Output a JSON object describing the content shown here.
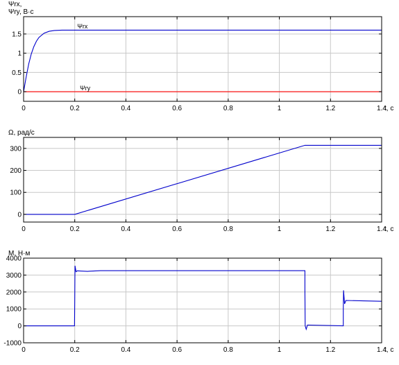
{
  "chart_data": [
    {
      "type": "line",
      "ylabel": [
        "Ψrx,",
        "Ψry, В·с"
      ],
      "xlabel": "t, с",
      "xlim": [
        0,
        1.4
      ],
      "ylim": [
        -0.25,
        1.95
      ],
      "xticks": [
        0,
        0.2,
        0.4,
        0.6,
        0.8,
        1,
        1.2,
        1.4
      ],
      "xtick_labels": [
        "0",
        "0.2",
        "0.4",
        "0.6",
        "0.8",
        "1",
        "1.2",
        "1.4"
      ],
      "yticks": [
        0,
        0.5,
        1,
        1.5
      ],
      "ytick_labels": [
        "0",
        "0.5",
        "1",
        "1.5"
      ],
      "grid": true,
      "series": [
        {
          "name": "Ψrx",
          "color": "#0000cc",
          "x": [
            0,
            0.01,
            0.02,
            0.03,
            0.04,
            0.05,
            0.06,
            0.08,
            0.1,
            0.12,
            0.15,
            0.2,
            0.5,
            1.0,
            1.4
          ],
          "y": [
            0,
            0.38,
            0.72,
            0.98,
            1.17,
            1.31,
            1.41,
            1.52,
            1.57,
            1.59,
            1.6,
            1.6,
            1.6,
            1.6,
            1.6
          ]
        },
        {
          "name": "Ψry",
          "color": "#ff0000",
          "x": [
            0,
            1.4
          ],
          "y": [
            0,
            0
          ]
        }
      ],
      "annotations": [
        {
          "text": "Ψrx",
          "x": 0.21,
          "y": 1.64
        },
        {
          "text": "Ψry",
          "x": 0.22,
          "y": 0.04
        }
      ]
    },
    {
      "type": "line",
      "ylabel": [
        "Ω, рад/с"
      ],
      "xlabel": "t, с",
      "xlim": [
        0,
        1.4
      ],
      "ylim": [
        -35,
        350
      ],
      "xticks": [
        0,
        0.2,
        0.4,
        0.6,
        0.8,
        1,
        1.2,
        1.4
      ],
      "xtick_labels": [
        "0",
        "0.2",
        "0.4",
        "0.6",
        "0.8",
        "1",
        "1.2",
        "1.4"
      ],
      "yticks": [
        0,
        100,
        200,
        300
      ],
      "ytick_labels": [
        "0",
        "100",
        "200",
        "300"
      ],
      "grid": true,
      "series": [
        {
          "color": "#0000cc",
          "x": [
            0,
            0.2,
            1.1,
            1.4
          ],
          "y": [
            0,
            0,
            314,
            314
          ]
        }
      ]
    },
    {
      "type": "line",
      "ylabel": [
        "M, Н·м"
      ],
      "xlabel": "t, с",
      "xlim": [
        0,
        1.4
      ],
      "ylim": [
        -1000,
        4000
      ],
      "xticks": [
        0,
        0.2,
        0.4,
        0.6,
        0.8,
        1,
        1.2,
        1.4
      ],
      "xtick_labels": [
        "0",
        "0.2",
        "0.4",
        "0.6",
        "0.8",
        "1",
        "1.2",
        "1.4"
      ],
      "yticks": [
        -1000,
        0,
        1000,
        2000,
        3000,
        4000
      ],
      "ytick_labels": [
        "-1000",
        "0",
        "1000",
        "2000",
        "3000",
        "4000"
      ],
      "grid": true,
      "series": [
        {
          "color": "#0000cc",
          "x": [
            0,
            0.199,
            0.2,
            0.201,
            0.205,
            0.21,
            0.25,
            0.3,
            1.1,
            1.1,
            1.101,
            1.105,
            1.11,
            1.25,
            1.25,
            1.251,
            1.255,
            1.26,
            1.4
          ],
          "y": [
            0,
            0,
            1500,
            3550,
            3200,
            3250,
            3220,
            3260,
            3260,
            2000,
            0,
            -200,
            50,
            0,
            1000,
            2100,
            1300,
            1500,
            1450
          ]
        }
      ]
    }
  ]
}
